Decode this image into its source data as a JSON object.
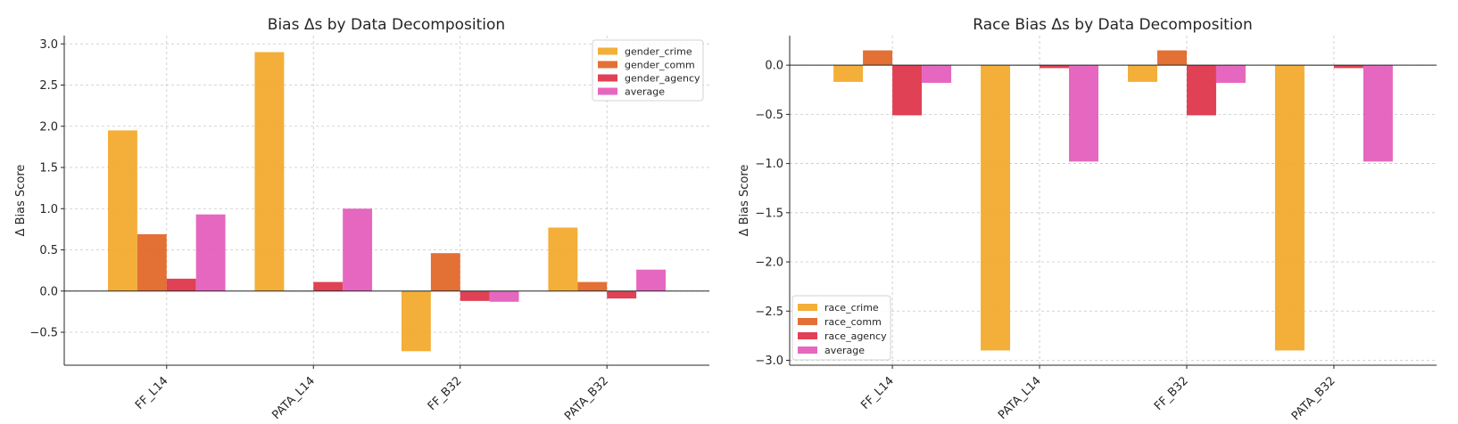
{
  "colors": {
    "crime": "#F2A623",
    "comm": "#E0601F",
    "agency": "#DD2C42",
    "average": "#E356B8"
  },
  "chart_data": [
    {
      "type": "bar",
      "title": "Bias Δs by Data Decomposition",
      "xlabel": "",
      "ylabel": "Δ Bias Score",
      "categories": [
        "FF_L14",
        "PATA_L14",
        "FF_B32",
        "PATA_B32"
      ],
      "ylim": [
        -0.9,
        3.1
      ],
      "yticks": [
        -0.5,
        0.0,
        0.5,
        1.0,
        1.5,
        2.0,
        2.5,
        3.0
      ],
      "ytick_labels": [
        "−0.5",
        "0.0",
        "0.5",
        "1.0",
        "1.5",
        "2.0",
        "2.5",
        "3.0"
      ],
      "grid": true,
      "legend_position": "top-right",
      "series": [
        {
          "name": "gender_crime",
          "values": [
            1.95,
            2.9,
            -0.73,
            0.77
          ]
        },
        {
          "name": "gender_comm",
          "values": [
            0.69,
            0.0,
            0.46,
            0.11
          ]
        },
        {
          "name": "gender_agency",
          "values": [
            0.15,
            0.11,
            -0.12,
            -0.09
          ]
        },
        {
          "name": "average",
          "values": [
            0.93,
            1.0,
            -0.13,
            0.26
          ]
        }
      ]
    },
    {
      "type": "bar",
      "title": "Race Bias Δs by Data Decomposition",
      "xlabel": "",
      "ylabel": "Δ Bias Score",
      "categories": [
        "FF_L14",
        "PATA_L14",
        "FF_B32",
        "PATA_B32"
      ],
      "ylim": [
        -3.05,
        0.3
      ],
      "yticks": [
        -3.0,
        -2.5,
        -2.0,
        -1.5,
        -1.0,
        -0.5,
        0.0
      ],
      "ytick_labels": [
        "−3.0",
        "−2.5",
        "−2.0",
        "−1.5",
        "−1.0",
        "−0.5",
        "0.0"
      ],
      "grid": true,
      "legend_position": "bottom-left",
      "series": [
        {
          "name": "race_crime",
          "values": [
            -0.17,
            -2.9,
            -0.17,
            -2.9
          ]
        },
        {
          "name": "race_comm",
          "values": [
            0.15,
            0.0,
            0.15,
            0.0
          ]
        },
        {
          "name": "race_agency",
          "values": [
            -0.51,
            -0.03,
            -0.51,
            -0.03
          ]
        },
        {
          "name": "average",
          "values": [
            -0.18,
            -0.98,
            -0.18,
            -0.98
          ]
        }
      ]
    }
  ]
}
